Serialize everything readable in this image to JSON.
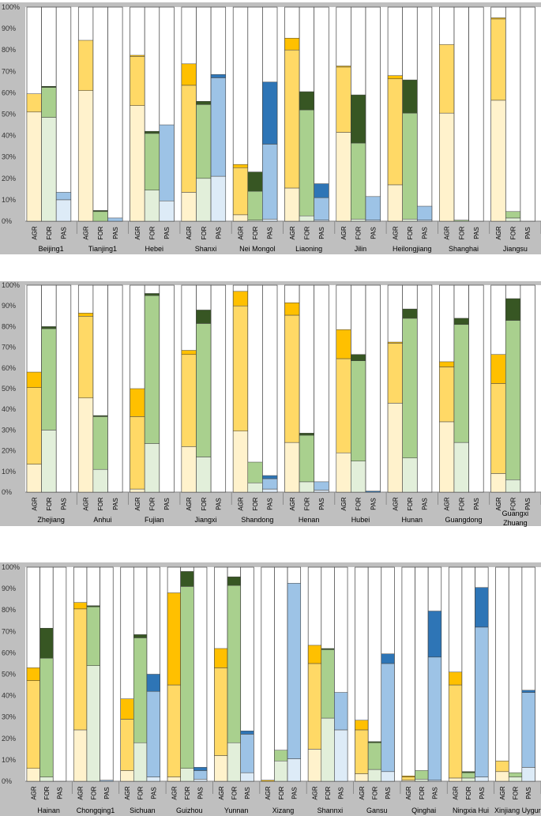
{
  "chart_data": {
    "type": "bar",
    "stacked": true,
    "y_tick_labels": [
      "0%",
      "10%",
      "20%",
      "30%",
      "40%",
      "50%",
      "60%",
      "70%",
      "80%",
      "90%",
      "100%"
    ],
    "ylim": [
      0,
      100
    ],
    "bar_labels": [
      "AGR",
      "FOR",
      "PAS"
    ],
    "grid": false,
    "colors": {
      "AGR": [
        "#fff2cc",
        "#ffd966",
        "#ffc000"
      ],
      "FOR": [
        "#e2efda",
        "#a9d08e",
        "#375623"
      ],
      "PAS": [
        "#ddebf7",
        "#9dc3e6",
        "#2e75b6"
      ],
      "panel_bg": "#bfbfbf"
    },
    "rows": [
      {
        "provinces": [
          {
            "name": "Beijing1",
            "bars": {
              "AGR": [
                51,
                8.5,
                0
              ],
              "FOR": [
                48.5,
                14,
                0.5
              ],
              "PAS": [
                10,
                3.5,
                0
              ]
            }
          },
          {
            "name": "Tianjing1",
            "bars": {
              "AGR": [
                61,
                23.5,
                0
              ],
              "FOR": [
                0,
                4.5,
                0.5
              ],
              "PAS": [
                0,
                1.5,
                0
              ]
            }
          },
          {
            "name": "Hebei",
            "bars": {
              "AGR": [
                54,
                23,
                0.5
              ],
              "FOR": [
                14.5,
                26.5,
                1
              ],
              "PAS": [
                9.5,
                35.5,
                0
              ]
            }
          },
          {
            "name": "Shanxi",
            "bars": {
              "AGR": [
                13.5,
                50,
                10
              ],
              "FOR": [
                20,
                34.5,
                1.5
              ],
              "PAS": [
                21,
                46,
                1.5
              ]
            }
          },
          {
            "name": "Nei Mongol",
            "bars": {
              "AGR": [
                3,
                22,
                1.5
              ],
              "FOR": [
                0.5,
                13.5,
                9
              ],
              "PAS": [
                1,
                35,
                29
              ]
            }
          },
          {
            "name": "Liaoning",
            "bars": {
              "AGR": [
                15.5,
                64.5,
                5.5
              ],
              "FOR": [
                2.5,
                49.5,
                8.5
              ],
              "PAS": [
                0.5,
                10.5,
                6.5
              ]
            }
          },
          {
            "name": "Jilin",
            "bars": {
              "AGR": [
                41.5,
                30.5,
                0.5
              ],
              "FOR": [
                1,
                35.5,
                22.5
              ],
              "PAS": [
                0.5,
                11,
                0
              ]
            }
          },
          {
            "name": "Heilongjiang",
            "bars": {
              "AGR": [
                17,
                49.5,
                1.5
              ],
              "FOR": [
                1,
                49.5,
                15.5
              ],
              "PAS": [
                0.5,
                6.5,
                0
              ]
            }
          },
          {
            "name": "Shanghai",
            "bars": {
              "AGR": [
                50.5,
                32,
                0
              ],
              "FOR": [
                0,
                0.5,
                0
              ],
              "PAS": [
                0,
                0,
                0
              ]
            }
          },
          {
            "name": "Jiangsu",
            "bars": {
              "AGR": [
                56.5,
                38,
                0.5
              ],
              "FOR": [
                1.5,
                3,
                0
              ],
              "PAS": [
                0,
                0,
                0
              ]
            }
          }
        ]
      },
      {
        "provinces": [
          {
            "name": "Zhejiang",
            "bars": {
              "AGR": [
                13.5,
                37,
                7.5
              ],
              "FOR": [
                30,
                49,
                1
              ],
              "PAS": [
                0,
                0,
                0
              ]
            }
          },
          {
            "name": "Anhui",
            "bars": {
              "AGR": [
                45.5,
                39.5,
                1.5
              ],
              "FOR": [
                11,
                25.5,
                0.5
              ],
              "PAS": [
                0,
                0,
                0
              ]
            }
          },
          {
            "name": "Fujian",
            "bars": {
              "AGR": [
                1.5,
                35,
                13.5
              ],
              "FOR": [
                23.5,
                71.5,
                1
              ],
              "PAS": [
                0,
                0,
                0
              ]
            }
          },
          {
            "name": "Jiangxi",
            "bars": {
              "AGR": [
                22,
                44.5,
                2
              ],
              "FOR": [
                17,
                64.5,
                6.5
              ],
              "PAS": [
                0,
                0,
                0
              ]
            }
          },
          {
            "name": "Shandong",
            "bars": {
              "AGR": [
                29.5,
                60.5,
                7
              ],
              "FOR": [
                4.5,
                10,
                0
              ],
              "PAS": [
                1.5,
                5,
                1.5
              ]
            }
          },
          {
            "name": "Henan",
            "bars": {
              "AGR": [
                24,
                61.5,
                6
              ],
              "FOR": [
                5,
                22.5,
                1
              ],
              "PAS": [
                1,
                4,
                0
              ]
            }
          },
          {
            "name": "Hubei",
            "bars": {
              "AGR": [
                19,
                45.5,
                14
              ],
              "FOR": [
                15,
                48.5,
                3
              ],
              "PAS": [
                0,
                0,
                0.5
              ]
            }
          },
          {
            "name": "Hunan",
            "bars": {
              "AGR": [
                43,
                29,
                0.5
              ],
              "FOR": [
                16.5,
                67.5,
                4.5
              ],
              "PAS": [
                0,
                0,
                0
              ]
            }
          },
          {
            "name": "Guangdong",
            "bars": {
              "AGR": [
                34,
                26.5,
                2.5
              ],
              "FOR": [
                24,
                57,
                3
              ],
              "PAS": [
                0,
                0,
                0
              ]
            }
          },
          {
            "name": "Guangxi Zhuang",
            "bars": {
              "AGR": [
                9,
                43.5,
                14
              ],
              "FOR": [
                6,
                77,
                10.5
              ],
              "PAS": [
                0,
                0,
                0
              ]
            }
          }
        ]
      },
      {
        "provinces": [
          {
            "name": "Hainan",
            "bars": {
              "AGR": [
                6,
                41,
                6
              ],
              "FOR": [
                2,
                55.5,
                14
              ],
              "PAS": [
                0,
                0,
                0
              ]
            }
          },
          {
            "name": "Chongqing1",
            "bars": {
              "AGR": [
                24,
                56.5,
                3
              ],
              "FOR": [
                54,
                27.5,
                0.5
              ],
              "PAS": [
                0,
                0.5,
                0
              ]
            }
          },
          {
            "name": "Sichuan",
            "bars": {
              "AGR": [
                5,
                24,
                9.5
              ],
              "FOR": [
                18,
                49,
                1.5
              ],
              "PAS": [
                2,
                40,
                8
              ]
            }
          },
          {
            "name": "Guizhou",
            "bars": {
              "AGR": [
                2,
                43,
                43
              ],
              "FOR": [
                6,
                85,
                7
              ],
              "PAS": [
                1,
                4,
                1.5
              ]
            }
          },
          {
            "name": "Yunnan",
            "bars": {
              "AGR": [
                12,
                41,
                9
              ],
              "FOR": [
                18,
                73.5,
                4
              ],
              "PAS": [
                4,
                18,
                1.5
              ]
            }
          },
          {
            "name": "Xizang",
            "bars": {
              "AGR": [
                0,
                0,
                0.5
              ],
              "FOR": [
                9.5,
                5,
                0
              ],
              "PAS": [
                10.5,
                82,
                0
              ]
            }
          },
          {
            "name": "Shannxi",
            "bars": {
              "AGR": [
                15,
                40,
                8.5
              ],
              "FOR": [
                29.5,
                32,
                0.5
              ],
              "PAS": [
                24,
                17.5,
                0
              ]
            }
          },
          {
            "name": "Gansu",
            "bars": {
              "AGR": [
                3.5,
                20.5,
                4.5
              ],
              "FOR": [
                5.5,
                12.5,
                0.5
              ],
              "PAS": [
                4.5,
                50.5,
                4.5
              ]
            }
          },
          {
            "name": "Qinghai",
            "bars": {
              "AGR": [
                0.5,
                1.5,
                0.5
              ],
              "FOR": [
                1,
                4,
                0
              ],
              "PAS": [
                0.5,
                57.5,
                21.5
              ]
            }
          },
          {
            "name": "Ningxia Hui",
            "bars": {
              "AGR": [
                1.5,
                43.5,
                6
              ],
              "FOR": [
                1.5,
                2.5,
                0.5
              ],
              "PAS": [
                2,
                70,
                18.5
              ]
            }
          },
          {
            "name": "Xinjiang Uygur",
            "bars": {
              "AGR": [
                4.5,
                5,
                0
              ],
              "FOR": [
                2,
                2,
                0
              ],
              "PAS": [
                6.5,
                35,
                1
              ]
            }
          }
        ]
      }
    ]
  }
}
